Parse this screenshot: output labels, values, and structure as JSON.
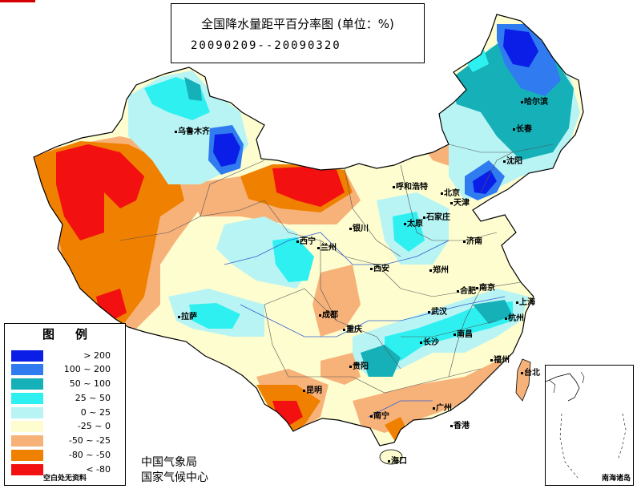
{
  "title": {
    "main": "全国降水量距平百分率图 (单位：%)",
    "period": "20090209--20090320"
  },
  "legend": {
    "title": "图例",
    "items": [
      {
        "label": "> 200",
        "color": "#0a1ee8"
      },
      {
        "label": "100 ~ 200",
        "color": "#2f7bef"
      },
      {
        "label": "50 ~ 100",
        "color": "#16b0b8"
      },
      {
        "label": "25 ~ 50",
        "color": "#2ff0f0"
      },
      {
        "label": "0 ~ 25",
        "color": "#b8f4f4"
      },
      {
        "label": "-25 ~ 0",
        "color": "#fdfdcf"
      },
      {
        "label": "-50 ~ -25",
        "color": "#f7b27a"
      },
      {
        "label": "-80 ~ -50",
        "color": "#f08000"
      },
      {
        "label": "< -80",
        "color": "#f21010"
      }
    ],
    "note": "空白处无资料"
  },
  "agency": [
    "中国气象局",
    "国家气候中心"
  ],
  "inset_label": "南海诸岛",
  "cities": [
    {
      "name": "乌鲁木齐"
    },
    {
      "name": "哈尔滨"
    },
    {
      "name": "长春"
    },
    {
      "name": "沈阳"
    },
    {
      "name": "呼和浩特"
    },
    {
      "name": "北京"
    },
    {
      "name": "天津"
    },
    {
      "name": "石家庄"
    },
    {
      "name": "太原"
    },
    {
      "name": "银川"
    },
    {
      "name": "兰州"
    },
    {
      "name": "西宁"
    },
    {
      "name": "济南"
    },
    {
      "name": "郑州"
    },
    {
      "name": "西安"
    },
    {
      "name": "拉萨"
    },
    {
      "name": "成都"
    },
    {
      "name": "重庆"
    },
    {
      "name": "武汉"
    },
    {
      "name": "合肥"
    },
    {
      "name": "南京"
    },
    {
      "name": "上海"
    },
    {
      "name": "杭州"
    },
    {
      "name": "长沙"
    },
    {
      "name": "南昌"
    },
    {
      "name": "福州"
    },
    {
      "name": "贵阳"
    },
    {
      "name": "昆明"
    },
    {
      "name": "南宁"
    },
    {
      "name": "广州"
    },
    {
      "name": "香港"
    },
    {
      "name": "台北"
    },
    {
      "name": "海口"
    }
  ]
}
